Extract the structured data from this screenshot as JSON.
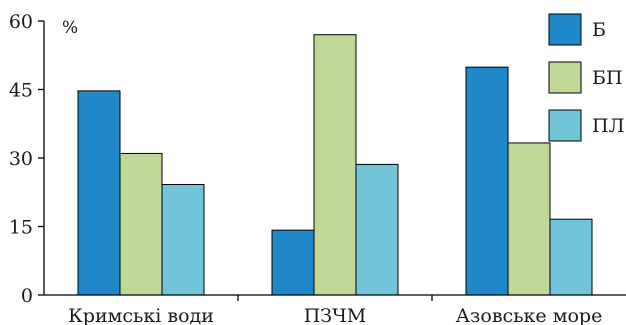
{
  "chart_data": {
    "type": "bar",
    "title": "",
    "xlabel": "",
    "ylabel": "",
    "y_unit": "%",
    "ylim": [
      0,
      60
    ],
    "yticks": [
      0,
      15,
      30,
      45,
      60
    ],
    "grid": false,
    "legend_position": "top-right",
    "categories": [
      "Кримські води",
      "ПЗЧМ",
      "Азовське море"
    ],
    "series": [
      {
        "name": "Б",
        "color": "#1f88c9",
        "values": [
          44.7,
          14.2,
          49.9
        ]
      },
      {
        "name": "БП",
        "color": "#bfd797",
        "values": [
          31.0,
          57.0,
          33.3
        ]
      },
      {
        "name": "ПЛ",
        "color": "#72c5d9",
        "values": [
          24.2,
          28.6,
          16.6
        ]
      }
    ]
  }
}
